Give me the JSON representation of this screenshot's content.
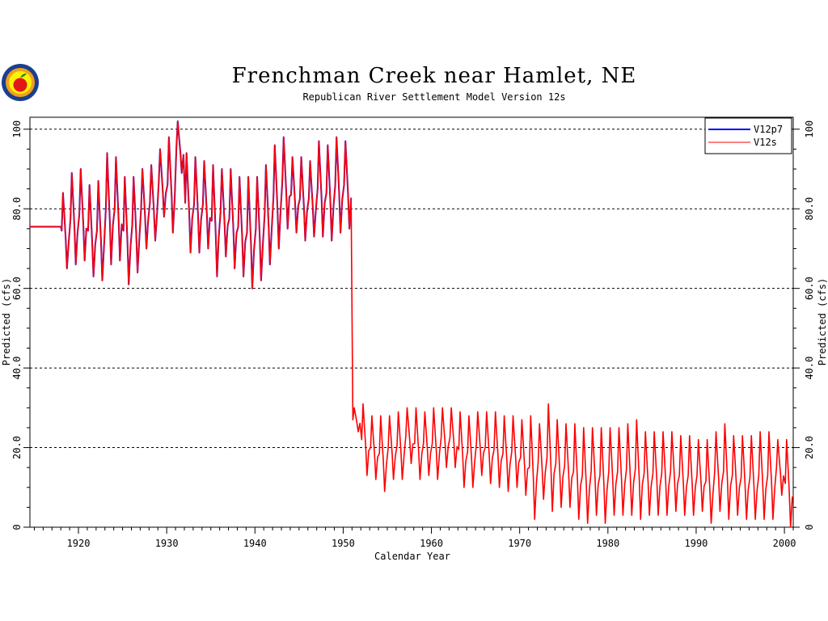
{
  "chart_data": {
    "type": "line",
    "title": "Frenchman Creek near Hamlet, NE",
    "subtitle": "Republican River Settlement Model Version 12s",
    "xlabel": "Calendar Year",
    "ylabel": "Predicted (cfs)",
    "ylabel_right": "Predicted (cfs)",
    "xlim": [
      1914.5,
      2001
    ],
    "ylim": [
      0,
      103
    ],
    "xticks": [
      1920,
      1930,
      1940,
      1950,
      1960,
      1970,
      1980,
      1990,
      2000
    ],
    "xtick_labels": [
      "1920",
      "1930",
      "1940",
      "1950",
      "1960",
      "1970",
      "1980",
      "1990",
      "2000"
    ],
    "yticks": [
      0,
      20,
      40,
      60,
      80,
      100
    ],
    "ytick_labels": [
      "0",
      "20.0",
      "40.0",
      "60.0",
      "80.0",
      "100"
    ],
    "grid": "horizontal dashed at 20, 40, 60, 80, 100",
    "legend_position": "top-right",
    "series": [
      {
        "name": "V12p7",
        "color": "#0000ff",
        "note_hidden": true,
        "years": [
          1915,
          1918,
          1919,
          1920,
          1921,
          1922,
          1923,
          1924,
          1925,
          1926,
          1927,
          1928,
          1929,
          1930,
          1931,
          1932,
          1933,
          1934,
          1935,
          1936,
          1937,
          1938,
          1939,
          1940,
          1941,
          1942,
          1943,
          1944,
          1945,
          1946,
          1947,
          1948,
          1949,
          1950
        ],
        "highs": [
          75.5,
          84,
          89,
          90,
          86,
          87,
          94,
          93,
          88,
          88,
          90,
          91,
          95,
          98,
          102,
          94,
          93,
          92,
          91,
          90,
          90,
          88,
          88,
          88,
          91,
          96,
          98,
          93,
          93,
          92,
          97,
          96,
          98,
          97
        ],
        "lows": [
          75.5,
          65,
          66,
          67,
          63,
          62,
          66,
          67,
          61,
          64,
          70,
          72,
          78,
          74,
          89,
          69,
          69,
          70,
          63,
          68,
          65,
          63,
          60,
          62,
          66,
          70,
          75,
          74,
          72,
          73,
          73,
          72,
          74,
          75
        ]
      },
      {
        "name": "V12s",
        "color": "#ff0000",
        "years": [
          1915,
          1918,
          1919,
          1920,
          1921,
          1922,
          1923,
          1924,
          1925,
          1926,
          1927,
          1928,
          1929,
          1930,
          1931,
          1932,
          1933,
          1934,
          1935,
          1936,
          1937,
          1938,
          1939,
          1940,
          1941,
          1942,
          1943,
          1944,
          1945,
          1946,
          1947,
          1948,
          1949,
          1950,
          1951,
          1952,
          1953,
          1954,
          1955,
          1956,
          1957,
          1958,
          1959,
          1960,
          1961,
          1962,
          1963,
          1964,
          1965,
          1966,
          1967,
          1968,
          1969,
          1970,
          1971,
          1972,
          1973,
          1974,
          1975,
          1976,
          1977,
          1978,
          1979,
          1980,
          1981,
          1982,
          1983,
          1984,
          1985,
          1986,
          1987,
          1988,
          1989,
          1990,
          1991,
          1992,
          1993,
          1994,
          1995,
          1996,
          1997,
          1998,
          1999,
          2000
        ],
        "highs": [
          75.5,
          84,
          89,
          90,
          86,
          87,
          94,
          93,
          88,
          88,
          90,
          91,
          95,
          98,
          102,
          94,
          93,
          92,
          91,
          90,
          90,
          88,
          88,
          88,
          91,
          96,
          98,
          93,
          93,
          92,
          97,
          96,
          98,
          97,
          30,
          31,
          28,
          28,
          28,
          29,
          30,
          30,
          29,
          30,
          30,
          30,
          29,
          28,
          29,
          29,
          29,
          28,
          28,
          27,
          28,
          26,
          31,
          27,
          26,
          26,
          25,
          25,
          25,
          25,
          25,
          26,
          27,
          24,
          24,
          24,
          24,
          23,
          23,
          22,
          22,
          24,
          26,
          23,
          23,
          23,
          24,
          24,
          22,
          22
        ],
        "lows": [
          75.5,
          65,
          66,
          67,
          63,
          62,
          66,
          67,
          61,
          64,
          70,
          72,
          78,
          74,
          89,
          69,
          69,
          70,
          63,
          68,
          65,
          63,
          60,
          62,
          66,
          70,
          75,
          74,
          72,
          73,
          73,
          72,
          74,
          75,
          24,
          13,
          12,
          9,
          12,
          12,
          16,
          12,
          13,
          12,
          15,
          15,
          10,
          10,
          13,
          11,
          10,
          9,
          10,
          8,
          2,
          7,
          4,
          5,
          5,
          2,
          1,
          3,
          1,
          3,
          3,
          3,
          2,
          3,
          3,
          3,
          4,
          3,
          3,
          4,
          1,
          4,
          2,
          3,
          2,
          2,
          2,
          2,
          8,
          0
        ]
      }
    ]
  }
}
